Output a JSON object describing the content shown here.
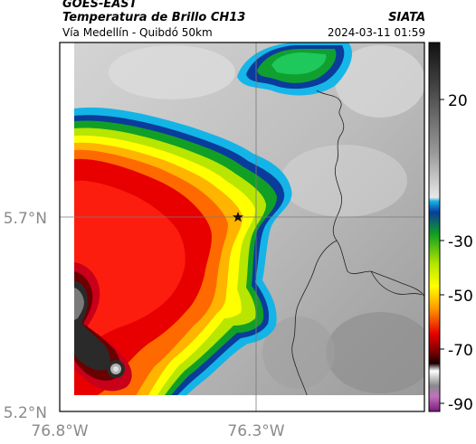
{
  "header": {
    "satellite": "GOES-EAST",
    "product": "Temperatura de Brillo CH13",
    "location": "Vía Medellín - Quibdó 50km",
    "organization": "SIATA",
    "datetime": "2024-03-11 01:59"
  },
  "axes": {
    "lat_ticks": [
      "5.7°N",
      "5.2°N"
    ],
    "lon_ticks": [
      "76.8°W",
      "76.3°W"
    ]
  },
  "colorbar": {
    "ticks": [
      "20",
      "-30",
      "-50",
      "-70",
      "-90"
    ],
    "range": [
      -95,
      35
    ]
  },
  "marker": {
    "type": "star",
    "icon": "star-icon"
  }
}
